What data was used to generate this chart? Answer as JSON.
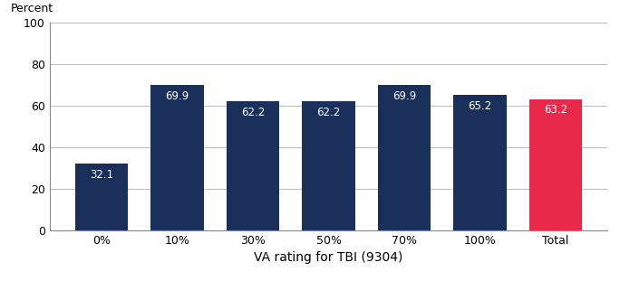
{
  "categories": [
    "0%",
    "10%",
    "30%",
    "50%",
    "70%",
    "100%",
    "Total"
  ],
  "values": [
    32.1,
    69.9,
    62.2,
    62.2,
    69.9,
    65.2,
    63.2
  ],
  "bar_colors": [
    "#1a2f5a",
    "#1a2f5a",
    "#1a2f5a",
    "#1a2f5a",
    "#1a2f5a",
    "#1a2f5a",
    "#e8294a"
  ],
  "percent_label": "Percent",
  "xlabel": "VA rating for TBI (9304)",
  "ylim": [
    0,
    100
  ],
  "yticks": [
    0,
    20,
    40,
    60,
    80,
    100
  ],
  "label_color": "#ffffff",
  "label_fontsize": 8.5,
  "axis_fontsize": 10,
  "tick_fontsize": 9,
  "background_color": "#ffffff",
  "grid_color": "#bbbbbb"
}
